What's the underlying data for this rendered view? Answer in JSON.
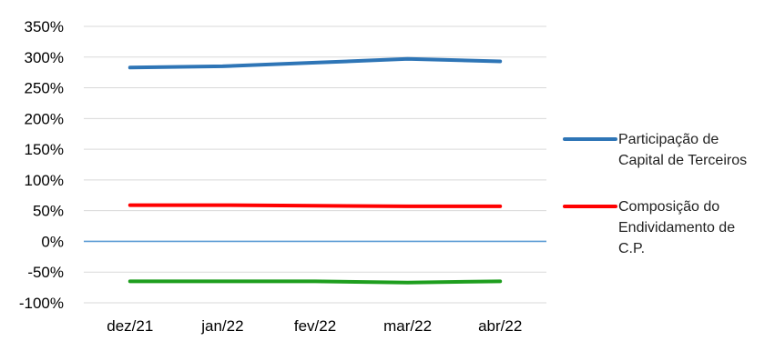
{
  "chart_data": {
    "type": "line",
    "categories": [
      "dez/21",
      "jan/22",
      "fev/22",
      "mar/22",
      "abr/22"
    ],
    "y_ticks": [
      "350%",
      "300%",
      "250%",
      "200%",
      "150%",
      "100%",
      "50%",
      "0%",
      "-50%",
      "-100%"
    ],
    "ylim": [
      -100,
      350
    ],
    "y_unit": "%",
    "grid": true,
    "legend_position": "right",
    "series": [
      {
        "name": "Participação de Capital de Terceiros",
        "legend_lines": [
          "Participação de",
          "Capital de Terceiros"
        ],
        "color": "#2e75b6",
        "values": [
          283,
          285,
          291,
          297,
          293
        ]
      },
      {
        "name": "Composição do Endividamento de C.P.",
        "legend_lines": [
          "Composição do",
          "Endividamento de",
          "C.P."
        ],
        "color": "#ff0000",
        "values": [
          59,
          59,
          58,
          57,
          57
        ]
      },
      {
        "color": "#1e9e1e",
        "values": [
          -65,
          -65,
          -65,
          -67,
          -65
        ]
      }
    ],
    "zero_line_color": "#5b9bd5"
  }
}
